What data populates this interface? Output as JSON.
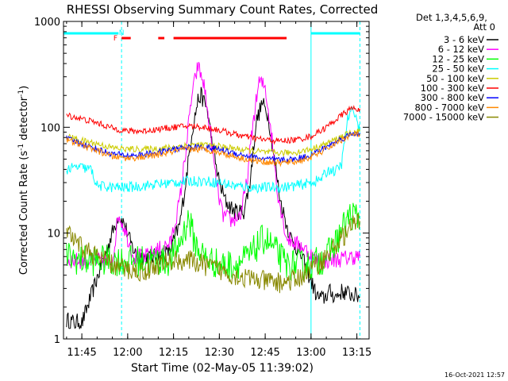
{
  "chart_data": {
    "type": "line",
    "title": "RHESSI Observing Summary Count Rates, Corrected",
    "xlabel": "Start Time (02-May-05 11:39:02)",
    "ylabel_main": "Corrected Count Rate (s",
    "ylabel_sup1": "-1",
    "ylabel_mid": " detector",
    "ylabel_sup2": "-1",
    "ylabel_end": ")",
    "xlim": [
      "11:39",
      "13:19"
    ],
    "ylim": [
      1,
      1000
    ],
    "yscale": "log",
    "x_ticks": [
      {
        "t": "11:45",
        "label": "11:45"
      },
      {
        "t": "12:00",
        "label": "12:00"
      },
      {
        "t": "12:15",
        "label": "12:15"
      },
      {
        "t": "12:30",
        "label": "12:30"
      },
      {
        "t": "12:45",
        "label": "12:45"
      },
      {
        "t": "13:00",
        "label": "13:00"
      },
      {
        "t": "13:15",
        "label": "13:15"
      }
    ],
    "y_ticks": [
      {
        "v": 1,
        "label": "1"
      },
      {
        "v": 10,
        "label": "10"
      },
      {
        "v": 100,
        "label": "100"
      },
      {
        "v": 1000,
        "label": "1000"
      }
    ],
    "legend": {
      "placement": "right",
      "header": [
        "Det 1,3,4,5,6,9,",
        "Att 0"
      ],
      "entries": [
        {
          "name": "3 - 6 keV",
          "color": "#000000"
        },
        {
          "name": "6 - 12 keV",
          "color": "#ff00ff"
        },
        {
          "name": "12 - 25 keV",
          "color": "#00ff00"
        },
        {
          "name": "25 - 50 keV",
          "color": "#00ffff"
        },
        {
          "name": "50 - 100 keV",
          "color": "#cccc00"
        },
        {
          "name": "100 - 300 keV",
          "color": "#ff0000"
        },
        {
          "name": "300 - 800 keV",
          "color": "#0000ff"
        },
        {
          "name": "800 - 7000 keV",
          "color": "#ff8800"
        },
        {
          "name": "7000 - 15000 keV",
          "color": "#888800"
        }
      ]
    },
    "series": [
      {
        "name": "3 - 6 keV",
        "color": "#000000",
        "noise": 0.08,
        "points": [
          [
            "11:40",
            1.5
          ],
          [
            "11:41",
            1.5
          ],
          [
            "11:43",
            1.4
          ],
          [
            "11:44",
            1.5
          ],
          [
            "11:45",
            1.4
          ],
          [
            "11:57",
            15
          ],
          [
            "11:59",
            12
          ],
          [
            "12:01",
            8
          ],
          [
            "12:03",
            6
          ],
          [
            "12:05",
            6
          ],
          [
            "12:08",
            6
          ],
          [
            "12:11",
            6
          ],
          [
            "12:14",
            7
          ],
          [
            "12:17",
            12
          ],
          [
            "12:19",
            30
          ],
          [
            "12:21",
            90
          ],
          [
            "12:23",
            180
          ],
          [
            "12:24",
            200
          ],
          [
            "12:26",
            150
          ],
          [
            "12:28",
            60
          ],
          [
            "12:30",
            30
          ],
          [
            "12:32",
            20
          ],
          [
            "12:35",
            16
          ],
          [
            "12:38",
            16
          ],
          [
            "12:40",
            30
          ],
          [
            "12:42",
            110
          ],
          [
            "12:44",
            170
          ],
          [
            "12:46",
            130
          ],
          [
            "12:48",
            50
          ],
          [
            "12:50",
            20
          ],
          [
            "12:52",
            12
          ],
          [
            "12:54",
            8
          ],
          [
            "12:56",
            7
          ],
          [
            "13:02",
            2.5
          ],
          [
            "13:04",
            2.4
          ],
          [
            "13:06",
            2.8
          ],
          [
            "13:08",
            2.5
          ],
          [
            "13:10",
            2.8
          ],
          [
            "13:12",
            2.7
          ],
          [
            "13:14",
            2.6
          ],
          [
            "13:16",
            2.5
          ]
        ]
      },
      {
        "name": "6 - 12 keV",
        "color": "#ff00ff",
        "noise": 0.08,
        "points": [
          [
            "11:40",
            5.5
          ],
          [
            "11:44",
            5.5
          ],
          [
            "11:50",
            5.5
          ],
          [
            "11:55",
            5.5
          ],
          [
            "11:57",
            15
          ],
          [
            "11:59",
            11
          ],
          [
            "12:02",
            6
          ],
          [
            "12:06",
            6
          ],
          [
            "12:10",
            7
          ],
          [
            "12:14",
            8
          ],
          [
            "12:17",
            20
          ],
          [
            "12:19",
            60
          ],
          [
            "12:21",
            200
          ],
          [
            "12:23",
            380
          ],
          [
            "12:25",
            250
          ],
          [
            "12:27",
            90
          ],
          [
            "12:29",
            30
          ],
          [
            "12:31",
            15
          ],
          [
            "12:34",
            13
          ],
          [
            "12:37",
            15
          ],
          [
            "12:39",
            30
          ],
          [
            "12:41",
            110
          ],
          [
            "12:43",
            270
          ],
          [
            "12:45",
            240
          ],
          [
            "12:47",
            90
          ],
          [
            "12:49",
            25
          ],
          [
            "12:52",
            9
          ],
          [
            "12:55",
            8
          ],
          [
            "12:57",
            7.5
          ],
          [
            "13:02",
            5.5
          ],
          [
            "13:06",
            5.5
          ],
          [
            "13:10",
            5.7
          ],
          [
            "13:14",
            6
          ],
          [
            "13:16",
            6
          ]
        ]
      },
      {
        "name": "12 - 25 keV",
        "color": "#00ff00",
        "noise": 0.15,
        "points": [
          [
            "11:40",
            6
          ],
          [
            "11:45",
            5.5
          ],
          [
            "11:50",
            5.5
          ],
          [
            "11:55",
            5.5
          ],
          [
            "12:00",
            5.5
          ],
          [
            "12:05",
            5.5
          ],
          [
            "12:10",
            5.5
          ],
          [
            "12:14",
            5.5
          ],
          [
            "12:17",
            8
          ],
          [
            "12:20",
            14
          ],
          [
            "12:22",
            8
          ],
          [
            "12:25",
            6
          ],
          [
            "12:30",
            5
          ],
          [
            "12:35",
            5
          ],
          [
            "12:40",
            6
          ],
          [
            "12:43",
            8
          ],
          [
            "12:45",
            9
          ],
          [
            "12:48",
            7
          ],
          [
            "12:52",
            5
          ],
          [
            "12:56",
            5
          ],
          [
            "13:00",
            5
          ],
          [
            "13:05",
            6
          ],
          [
            "13:08",
            8
          ],
          [
            "13:11",
            12
          ],
          [
            "13:13",
            15
          ],
          [
            "13:16",
            14
          ]
        ]
      },
      {
        "name": "25 - 50 keV",
        "color": "#00ffff",
        "noise": 0.05,
        "points": [
          [
            "11:40",
            40
          ],
          [
            "11:44",
            42
          ],
          [
            "11:48",
            40
          ],
          [
            "11:50",
            28
          ],
          [
            "11:55",
            27
          ],
          [
            "12:00",
            27
          ],
          [
            "12:05",
            28
          ],
          [
            "12:10",
            29
          ],
          [
            "12:15",
            30
          ],
          [
            "12:20",
            31
          ],
          [
            "12:25",
            31
          ],
          [
            "12:30",
            30
          ],
          [
            "12:35",
            28
          ],
          [
            "12:40",
            27
          ],
          [
            "12:45",
            27
          ],
          [
            "12:50",
            27
          ],
          [
            "12:55",
            28
          ],
          [
            "13:00",
            30
          ],
          [
            "13:03",
            32
          ],
          [
            "13:06",
            40
          ],
          [
            "13:08",
            38
          ],
          [
            "13:10",
            45
          ],
          [
            "13:12",
            120
          ],
          [
            "13:14",
            150
          ],
          [
            "13:16",
            90
          ]
        ]
      },
      {
        "name": "50 - 100 keV",
        "color": "#cccc00",
        "noise": 0.03,
        "points": [
          [
            "11:40",
            82
          ],
          [
            "11:45",
            75
          ],
          [
            "11:50",
            70
          ],
          [
            "11:55",
            64
          ],
          [
            "12:00",
            62
          ],
          [
            "12:05",
            62
          ],
          [
            "12:10",
            63
          ],
          [
            "12:15",
            65
          ],
          [
            "12:20",
            68
          ],
          [
            "12:25",
            68
          ],
          [
            "12:30",
            66
          ],
          [
            "12:35",
            63
          ],
          [
            "12:40",
            60
          ],
          [
            "12:45",
            58
          ],
          [
            "12:50",
            57
          ],
          [
            "12:55",
            58
          ],
          [
            "13:00",
            62
          ],
          [
            "13:05",
            70
          ],
          [
            "13:10",
            82
          ],
          [
            "13:14",
            90
          ],
          [
            "13:16",
            92
          ]
        ]
      },
      {
        "name": "100 - 300 keV",
        "color": "#ff0000",
        "noise": 0.03,
        "points": [
          [
            "11:40",
            130
          ],
          [
            "11:45",
            120
          ],
          [
            "11:50",
            110
          ],
          [
            "11:55",
            98
          ],
          [
            "12:00",
            92
          ],
          [
            "12:05",
            92
          ],
          [
            "12:10",
            96
          ],
          [
            "12:15",
            100
          ],
          [
            "12:20",
            103
          ],
          [
            "12:25",
            100
          ],
          [
            "12:30",
            94
          ],
          [
            "12:35",
            86
          ],
          [
            "12:40",
            80
          ],
          [
            "12:45",
            76
          ],
          [
            "12:50",
            74
          ],
          [
            "12:55",
            76
          ],
          [
            "13:00",
            82
          ],
          [
            "13:05",
            100
          ],
          [
            "13:10",
            130
          ],
          [
            "13:13",
            150
          ],
          [
            "13:16",
            150
          ]
        ]
      },
      {
        "name": "300 - 800 keV",
        "color": "#0000ff",
        "noise": 0.03,
        "points": [
          [
            "11:40",
            78
          ],
          [
            "11:45",
            70
          ],
          [
            "11:50",
            62
          ],
          [
            "11:55",
            56
          ],
          [
            "12:00",
            54
          ],
          [
            "12:05",
            55
          ],
          [
            "12:10",
            58
          ],
          [
            "12:15",
            62
          ],
          [
            "12:20",
            65
          ],
          [
            "12:25",
            65
          ],
          [
            "12:30",
            62
          ],
          [
            "12:35",
            57
          ],
          [
            "12:40",
            53
          ],
          [
            "12:45",
            50
          ],
          [
            "12:50",
            49
          ],
          [
            "12:55",
            50
          ],
          [
            "13:00",
            55
          ],
          [
            "13:05",
            65
          ],
          [
            "13:10",
            78
          ],
          [
            "13:14",
            88
          ],
          [
            "13:16",
            88
          ]
        ]
      },
      {
        "name": "800 - 7000 keV",
        "color": "#ff8800",
        "noise": 0.03,
        "points": [
          [
            "11:40",
            76
          ],
          [
            "11:45",
            68
          ],
          [
            "11:50",
            60
          ],
          [
            "11:55",
            53
          ],
          [
            "12:00",
            51
          ],
          [
            "12:05",
            52
          ],
          [
            "12:10",
            55
          ],
          [
            "12:15",
            59
          ],
          [
            "12:20",
            62
          ],
          [
            "12:25",
            62
          ],
          [
            "12:30",
            58
          ],
          [
            "12:35",
            53
          ],
          [
            "12:40",
            49
          ],
          [
            "12:45",
            47
          ],
          [
            "12:50",
            46
          ],
          [
            "12:55",
            47
          ],
          [
            "13:00",
            52
          ],
          [
            "13:05",
            62
          ],
          [
            "13:10",
            76
          ],
          [
            "13:14",
            86
          ],
          [
            "13:16",
            86
          ]
        ]
      },
      {
        "name": "7000 - 15000 keV",
        "color": "#888800",
        "noise": 0.1,
        "points": [
          [
            "11:40",
            10
          ],
          [
            "11:43",
            8
          ],
          [
            "11:46",
            7
          ],
          [
            "11:50",
            6
          ],
          [
            "11:55",
            5
          ],
          [
            "12:00",
            4.5
          ],
          [
            "12:05",
            4.3
          ],
          [
            "12:10",
            5
          ],
          [
            "12:15",
            5.5
          ],
          [
            "12:20",
            5.5
          ],
          [
            "12:25",
            5
          ],
          [
            "12:30",
            4.5
          ],
          [
            "12:35",
            4
          ],
          [
            "12:40",
            3.7
          ],
          [
            "12:45",
            3.5
          ],
          [
            "12:50",
            3.4
          ],
          [
            "12:55",
            3.6
          ],
          [
            "13:00",
            4.5
          ],
          [
            "13:05",
            6
          ],
          [
            "13:10",
            9
          ],
          [
            "13:14",
            12
          ],
          [
            "13:16",
            13
          ]
        ]
      }
    ],
    "flag_bars": [
      {
        "label": "",
        "color": "#00ffff",
        "segments": [
          [
            "11:39",
            "11:57"
          ],
          [
            "13:00",
            "13:16"
          ]
        ]
      },
      {
        "label": "F",
        "label_at": "11:56",
        "color": "#ff0000",
        "segments": [
          [
            "11:58",
            "12:01"
          ],
          [
            "12:10",
            "12:12"
          ],
          [
            "12:15",
            "12:52"
          ]
        ]
      }
    ],
    "flag_marks": [
      {
        "label": "N",
        "at": "11:58",
        "color": "#00ffff"
      }
    ],
    "markers": [
      {
        "t": "11:58",
        "style": "dashed",
        "color": "#00ffff"
      },
      {
        "t": "13:00",
        "style": "solid",
        "color": "#00ffff"
      },
      {
        "t": "13:16",
        "style": "dashed",
        "color": "#00ffff"
      }
    ],
    "timestamp": "16-Oct-2021 12:57"
  }
}
